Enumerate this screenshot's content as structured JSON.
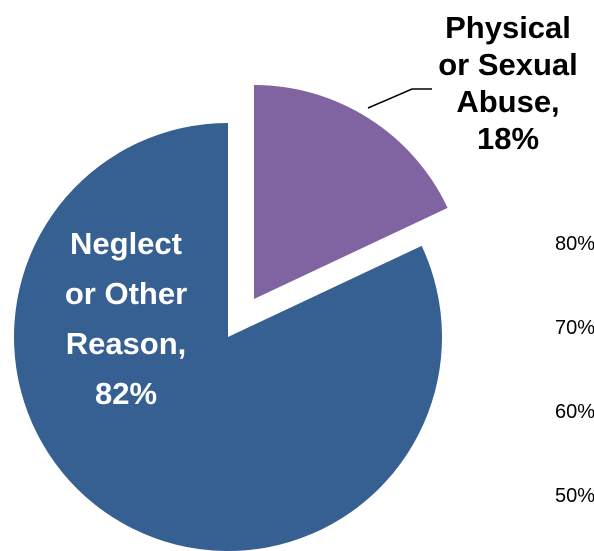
{
  "chart_data": {
    "type": "pie",
    "title": "",
    "slices": [
      {
        "name": "Physical or Sexual Abuse",
        "value": 18,
        "label_lines": [
          "Physical",
          "or Sexual",
          "Abuse,",
          "18%"
        ],
        "color": "#8064a2",
        "label_color": "#000000",
        "exploded": true
      },
      {
        "name": "Neglect or Other Reason",
        "value": 82,
        "label_lines": [
          "Neglect",
          "or Other",
          "Reason,",
          "82%"
        ],
        "color": "#376092",
        "label_color": "#ffffff",
        "exploded": false
      }
    ],
    "partial_axis_ticks": [
      "80%",
      "70%",
      "60%",
      "50%"
    ]
  }
}
